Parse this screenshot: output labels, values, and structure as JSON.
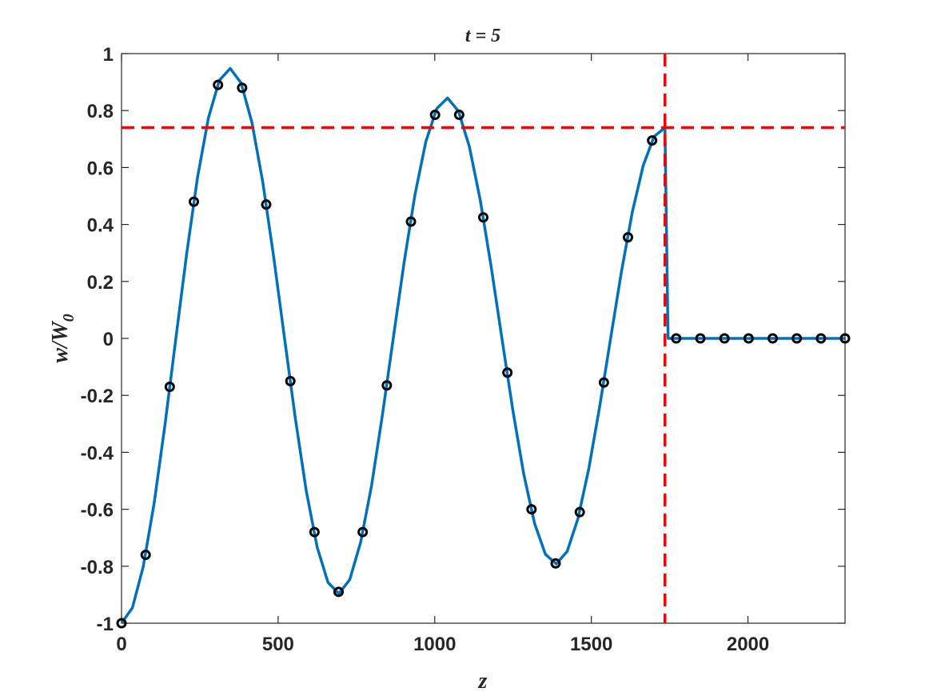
{
  "chart_data": {
    "type": "line",
    "title": "t = 5",
    "xlabel": "z",
    "ylabel": "w/W",
    "ylabel_sub": "0",
    "xlim": [
      0,
      2310
    ],
    "ylim": [
      -1,
      1
    ],
    "xticks": [
      0,
      500,
      1000,
      1500,
      2000
    ],
    "yticks": [
      -1,
      -0.8,
      -0.6,
      -0.4,
      -0.2,
      0,
      0.2,
      0.4,
      0.6,
      0.8,
      1
    ],
    "series": [
      {
        "style": "line",
        "color": "#0072bd",
        "x": [
          0,
          34.7,
          69.4,
          104.1,
          138.8,
          173.5,
          208.2,
          242.9,
          277.6,
          312.3,
          347,
          381.7,
          416.4,
          451.1,
          485.8,
          520.5,
          555.2,
          589.9,
          624.6,
          659.3,
          694,
          728.7,
          763.4,
          798.1,
          832.8,
          867.5,
          902.2,
          936.9,
          971.6,
          1006.3,
          1041,
          1075.7,
          1110.4,
          1145.1,
          1179.8,
          1214.5,
          1249.2,
          1283.9,
          1318.6,
          1353.3,
          1388,
          1422.7,
          1457.4,
          1492.1,
          1526.8,
          1561.5,
          1596.2,
          1630.9,
          1665.6,
          1700.3,
          1735,
          1745,
          2310
        ],
        "values": [
          -1,
          -0.946,
          -0.801,
          -0.579,
          -0.303,
          0,
          0.299,
          0.567,
          0.775,
          0.906,
          0.948,
          0.897,
          0.758,
          0.548,
          0.286,
          0,
          -0.283,
          -0.536,
          -0.733,
          -0.857,
          -0.896,
          -0.847,
          -0.716,
          -0.518,
          -0.27,
          0,
          0.267,
          0.505,
          0.691,
          0.807,
          0.844,
          0.798,
          0.674,
          0.487,
          0.254,
          0,
          -0.251,
          -0.475,
          -0.649,
          -0.758,
          -0.792,
          -0.748,
          -0.632,
          -0.456,
          -0.238,
          0,
          0.235,
          0.444,
          0.607,
          0.709,
          0.74,
          0,
          0
        ]
      },
      {
        "style": "marker",
        "color": "#000000",
        "x": [
          0,
          77,
          154,
          231,
          308,
          385,
          462,
          539,
          616,
          693,
          770,
          847,
          924,
          1001,
          1078,
          1155,
          1232,
          1309,
          1386,
          1463,
          1540,
          1617,
          1694,
          1771,
          1848,
          1925,
          2002,
          2079,
          2156,
          2233,
          2310
        ],
        "values": [
          -1,
          -0.76,
          -0.17,
          0.48,
          0.89,
          0.88,
          0.47,
          -0.15,
          -0.68,
          -0.89,
          -0.68,
          -0.165,
          0.41,
          0.785,
          0.785,
          0.425,
          -0.12,
          -0.6,
          -0.79,
          -0.61,
          -0.155,
          0.355,
          0.695,
          0,
          0,
          0,
          0,
          0,
          0,
          0,
          0
        ]
      }
    ],
    "hline": 0.74,
    "vline": 1735,
    "ref_color": "#ff0000"
  }
}
